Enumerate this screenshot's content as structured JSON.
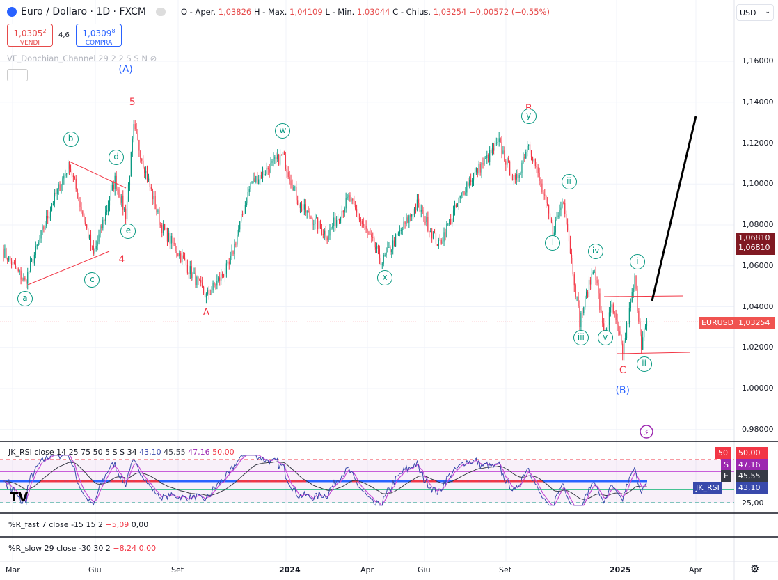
{
  "header": {
    "title": "Euro / Dollaro · 1D · FXCM",
    "o_label": "O - Aper.",
    "o": "1,03826",
    "h_label": "H - Max.",
    "h": "1,04109",
    "l_label": "L - Min.",
    "l": "1,03044",
    "c_label": "C - Chius.",
    "c": "1,03254",
    "change": "−0,00572 (−0,55%)"
  },
  "trade": {
    "sell_price": "1,0305",
    "sell_sup": "2",
    "sell_label": "VENDI",
    "spread": "4,6",
    "buy_price": "1,0309",
    "buy_sup": "8",
    "buy_label": "COMPRA"
  },
  "indicator": "VF_Donchian_Channel 29 2 2 S S N",
  "currency": "USD",
  "price_axis": [
    "1,16000",
    "1,14000",
    "1,12000",
    "1,10000",
    "1,08000",
    "1,06000",
    "1,04000",
    "1,02000",
    "1,00000",
    "0,98000"
  ],
  "price_tags": {
    "alert1": "1,06810",
    "alert2": "1,06810",
    "symbol": "EURUSD",
    "last": "1,03254"
  },
  "rsi": {
    "label": "JK_RSI close 14 25 75 50 5 S S 34",
    "v1": "43,10",
    "v2": "45,55",
    "v3": "47,16",
    "v4": "50,00",
    "tags": [
      {
        "k": "50",
        "v": "50,00",
        "c": "#f23645"
      },
      {
        "k": "S",
        "v": "47,16",
        "c": "#9c27b0"
      },
      {
        "k": "E",
        "v": "45,55",
        "c": "#363a45"
      },
      {
        "k": "JK_RSI",
        "v": "43,10",
        "c": "#3949ab"
      }
    ],
    "low": "25,00"
  },
  "rfast": {
    "label": "%R_fast 7 close -15 15 2",
    "v1": "−5,09",
    "v2": "0,00"
  },
  "rslow": {
    "label": "%R_slow 29 close -30 30 2",
    "v1": "−8,24",
    "v2": "0,00"
  },
  "time_axis": [
    "Mar",
    "Giu",
    "Set",
    "2024",
    "Apr",
    "Giu",
    "Set",
    "2025",
    "Apr"
  ],
  "chart_data": {
    "type": "candlestick",
    "symbol": "EURUSD",
    "ylim": [
      0.97,
      1.17
    ],
    "waypoints": [
      [
        0,
        1.067
      ],
      [
        16,
        1.052
      ],
      [
        36,
        1.09
      ],
      [
        49,
        1.11
      ],
      [
        67,
        1.065
      ],
      [
        83,
        1.102
      ],
      [
        91,
        1.085
      ],
      [
        97,
        1.127
      ],
      [
        117,
        1.08
      ],
      [
        151,
        1.045
      ],
      [
        168,
        1.06
      ],
      [
        184,
        1.1
      ],
      [
        208,
        1.114
      ],
      [
        220,
        1.09
      ],
      [
        241,
        1.075
      ],
      [
        257,
        1.093
      ],
      [
        282,
        1.062
      ],
      [
        308,
        1.09
      ],
      [
        324,
        1.07
      ],
      [
        345,
        1.1
      ],
      [
        369,
        1.12
      ],
      [
        381,
        1.1
      ],
      [
        391,
        1.121
      ],
      [
        409,
        1.077
      ],
      [
        417,
        1.093
      ],
      [
        429,
        1.033
      ],
      [
        440,
        1.06
      ],
      [
        447,
        1.025
      ],
      [
        453,
        1.04
      ],
      [
        461,
        1.018
      ],
      [
        470,
        1.053
      ],
      [
        475,
        1.022
      ],
      [
        479,
        1.0325
      ]
    ],
    "annotations": [
      {
        "i": 91,
        "p": 1.156,
        "t": "(A)",
        "c": "#2962ff",
        "circle": false
      },
      {
        "i": 96,
        "p": 1.14,
        "t": "5",
        "c": "#f23645",
        "circle": false
      },
      {
        "i": 88,
        "p": 1.063,
        "t": "4",
        "c": "#f23645",
        "circle": false
      },
      {
        "i": 151,
        "p": 1.037,
        "t": "A",
        "c": "#f23645",
        "circle": false
      },
      {
        "i": 391,
        "p": 1.137,
        "t": "B",
        "c": "#f23645",
        "circle": false
      },
      {
        "i": 461,
        "p": 1.009,
        "t": "C",
        "c": "#f23645",
        "circle": false
      },
      {
        "i": 461,
        "p": 0.999,
        "t": "(B)",
        "c": "#2962ff",
        "circle": false
      },
      {
        "i": 16,
        "p": 1.044,
        "t": "a",
        "circle": true
      },
      {
        "i": 50,
        "p": 1.122,
        "t": "b",
        "circle": true
      },
      {
        "i": 66,
        "p": 1.053,
        "t": "c",
        "circle": true
      },
      {
        "i": 84,
        "p": 1.113,
        "t": "d",
        "circle": true
      },
      {
        "i": 93,
        "p": 1.077,
        "t": "e",
        "circle": true
      },
      {
        "i": 208,
        "p": 1.126,
        "t": "w",
        "circle": true
      },
      {
        "i": 284,
        "p": 1.054,
        "t": "x",
        "circle": true
      },
      {
        "i": 391,
        "p": 1.133,
        "t": "y",
        "circle": true
      },
      {
        "i": 409,
        "p": 1.071,
        "t": "i",
        "circle": true
      },
      {
        "i": 421,
        "p": 1.101,
        "t": "ii",
        "circle": true
      },
      {
        "i": 430,
        "p": 1.025,
        "t": "iii",
        "circle": true
      },
      {
        "i": 441,
        "p": 1.067,
        "t": "iv",
        "circle": true
      },
      {
        "i": 448,
        "p": 1.025,
        "t": "v",
        "circle": true
      },
      {
        "i": 472,
        "p": 1.062,
        "t": "i",
        "circle": true
      },
      {
        "i": 477,
        "p": 1.012,
        "t": "ii",
        "circle": true
      }
    ]
  }
}
